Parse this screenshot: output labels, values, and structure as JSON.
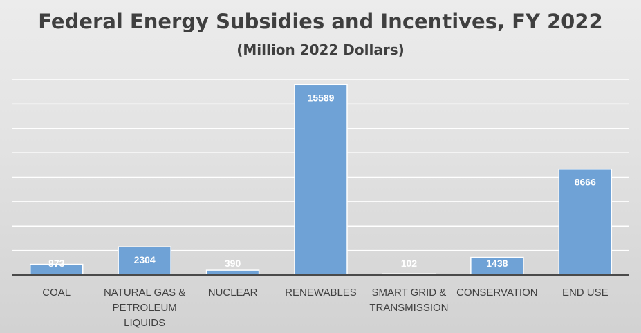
{
  "chart_data": {
    "type": "bar",
    "title": "Federal Energy Subsidies and Incentives, FY 2022",
    "subtitle": "(Million 2022 Dollars)",
    "categories": [
      [
        "COAL"
      ],
      [
        "NATURAL GAS &",
        "PETROLEUM",
        "LIQUIDS"
      ],
      [
        "NUCLEAR"
      ],
      [
        "RENEWABLES"
      ],
      [
        "SMART GRID &",
        "TRANSMISSION"
      ],
      [
        "CONSERVATION"
      ],
      [
        "END USE"
      ]
    ],
    "values": [
      873,
      2304,
      390,
      15589,
      102,
      1438,
      8666
    ],
    "data_labels": [
      "873",
      "2304",
      "390",
      "15589",
      "102",
      "1438",
      "8666"
    ],
    "xlabel": "",
    "ylabel": "",
    "ylim": [
      0,
      16000
    ],
    "gridline_step": 2000,
    "grid": true,
    "axis_labels_shown": false,
    "bar_color": "#6fa2d6",
    "bar_border_color": "#ffffff",
    "gridline_color": "#ffffff",
    "baseline_color": "#4a4a4a"
  }
}
